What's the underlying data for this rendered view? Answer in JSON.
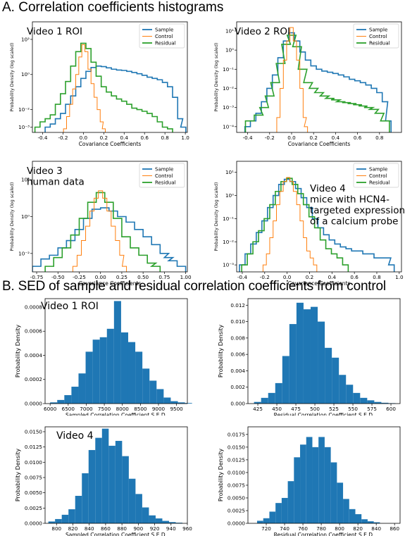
{
  "section_a_title": "A. Correlation coefficients histograms",
  "section_b_title": "B. SED of sample and residual correlation coefficients from  control",
  "colors": {
    "sample": "#1f77b4",
    "control": "#ff7f0e",
    "residual": "#2ca02c",
    "bar": "#1f77b4"
  },
  "chart_data": [
    {
      "type": "line",
      "panel_label": [
        "Video 1 ROI"
      ],
      "xlabel": "Covariance Coefficients",
      "ylabel": "Probability Density (log scaled)",
      "xlim": [
        -0.5,
        1.02
      ],
      "ylim": [
        0.0005,
        1000
      ],
      "yscale": "log",
      "xticks": [
        -0.4,
        -0.2,
        0.0,
        0.2,
        0.4,
        0.6,
        0.8,
        1.0
      ],
      "xtick_labels": [
        "-0.4",
        "-0.2",
        "0.0",
        "0.2",
        "0.4",
        "0.6",
        "0.8",
        "1.0"
      ],
      "yticks": [
        0.001,
        0.01,
        1,
        100
      ],
      "ytick_labels": [
        "10⁻³",
        "10⁻²",
        "10⁰",
        "10²"
      ],
      "legend": "top-right",
      "series": [
        {
          "name": "Sample",
          "color_key": "sample",
          "x": [
            -0.35,
            -0.3,
            -0.25,
            -0.2,
            -0.15,
            -0.1,
            -0.05,
            0.0,
            0.05,
            0.1,
            0.15,
            0.2,
            0.25,
            0.3,
            0.35,
            0.4,
            0.45,
            0.5,
            0.55,
            0.6,
            0.65,
            0.7,
            0.75,
            0.8,
            0.85,
            0.9,
            0.95,
            0.98
          ],
          "y": [
            0.001,
            0.0015,
            0.003,
            0.006,
            0.02,
            0.06,
            0.2,
            0.6,
            1.5,
            2.5,
            3.0,
            2.8,
            2.4,
            2.0,
            1.8,
            1.7,
            1.5,
            1.3,
            1.1,
            0.9,
            0.7,
            0.6,
            0.5,
            0.35,
            0.2,
            0.05,
            0.003,
            0.001
          ]
        },
        {
          "name": "Control",
          "color_key": "control",
          "x": [
            -0.18,
            -0.15,
            -0.12,
            -0.09,
            -0.06,
            -0.03,
            0.0,
            0.03,
            0.06,
            0.09,
            0.12,
            0.15,
            0.18,
            0.2
          ],
          "y": [
            0.0008,
            0.004,
            0.02,
            0.15,
            1.0,
            10,
            50,
            20,
            2,
            0.3,
            0.05,
            0.01,
            0.002,
            0.0008
          ]
        },
        {
          "name": "Residual",
          "color_key": "residual",
          "x": [
            -0.45,
            -0.4,
            -0.35,
            -0.3,
            -0.25,
            -0.2,
            -0.15,
            -0.1,
            -0.05,
            0.0,
            0.05,
            0.1,
            0.15,
            0.2,
            0.25,
            0.3,
            0.35,
            0.4,
            0.45,
            0.5,
            0.55,
            0.6,
            0.65,
            0.7,
            0.75,
            0.8,
            0.85
          ],
          "y": [
            0.001,
            0.002,
            0.003,
            0.005,
            0.02,
            0.08,
            0.4,
            3,
            20,
            60,
            30,
            5,
            0.8,
            0.2,
            0.1,
            0.06,
            0.04,
            0.03,
            0.02,
            0.012,
            0.01,
            0.008,
            0.006,
            0.004,
            0.002,
            0.001,
            0.0008
          ]
        }
      ]
    },
    {
      "type": "line",
      "panel_label": [
        "Video 2 ROI"
      ],
      "xlabel": "Covariance Coefficients",
      "ylabel": "Probability Density (log scaled)",
      "xlim": [
        -0.5,
        1.0
      ],
      "ylim": [
        5e-05,
        30
      ],
      "yscale": "log",
      "xticks": [
        -0.4,
        -0.2,
        0.0,
        0.2,
        0.4,
        0.6,
        0.8
      ],
      "xtick_labels": [
        "-0.4",
        "-0.2",
        "0.0",
        "0.2",
        "0.4",
        "0.6",
        "0.8"
      ],
      "yticks": [
        0.0001,
        0.001,
        0.01,
        0.1,
        1,
        10
      ],
      "ytick_labels": [
        "10⁻⁴",
        "10⁻³",
        "10⁻²",
        "10⁻¹",
        "10⁰",
        "10¹"
      ],
      "legend": "top-right",
      "series": [
        {
          "name": "Sample",
          "color_key": "sample",
          "x": [
            -0.4,
            -0.35,
            -0.3,
            -0.25,
            -0.2,
            -0.15,
            -0.1,
            -0.05,
            0.0,
            0.05,
            0.1,
            0.15,
            0.2,
            0.25,
            0.3,
            0.35,
            0.4,
            0.45,
            0.5,
            0.55,
            0.6,
            0.65,
            0.7,
            0.75,
            0.8,
            0.85,
            0.88
          ],
          "y": [
            0.0001,
            0.0002,
            0.0005,
            0.002,
            0.01,
            0.05,
            0.4,
            3,
            8,
            3,
            0.8,
            0.3,
            0.15,
            0.1,
            0.08,
            0.07,
            0.06,
            0.05,
            0.04,
            0.03,
            0.025,
            0.02,
            0.015,
            0.01,
            0.006,
            0.002,
            0.0002
          ]
        },
        {
          "name": "Control",
          "color_key": "control",
          "x": [
            -0.12,
            -0.09,
            -0.06,
            -0.03,
            0.0,
            0.03,
            0.06,
            0.09,
            0.12,
            0.13
          ],
          "y": [
            0.0003,
            0.01,
            0.3,
            3,
            15,
            3,
            0.3,
            0.01,
            0.0003,
            0.0001
          ]
        },
        {
          "name": "Residual",
          "color_key": "residual",
          "x": [
            -0.38,
            -0.3,
            -0.25,
            -0.2,
            -0.15,
            -0.1,
            -0.05,
            0.0,
            0.05,
            0.1,
            0.15,
            0.2,
            0.25,
            0.3,
            0.35,
            0.4,
            0.45,
            0.5,
            0.55,
            0.6,
            0.65,
            0.7,
            0.75,
            0.8,
            0.85
          ],
          "y": [
            0.0002,
            0.0004,
            0.001,
            0.004,
            0.02,
            0.2,
            2,
            6,
            1.5,
            0.1,
            0.02,
            0.01,
            0.006,
            0.004,
            0.003,
            0.0025,
            0.002,
            0.0018,
            0.0016,
            0.0014,
            0.0012,
            0.001,
            0.0008,
            0.0005,
            0.0002
          ]
        }
      ]
    },
    {
      "type": "line",
      "panel_label": [
        "Video 3",
        "human data"
      ],
      "xlabel": "Covariance Coefficients",
      "ylabel": "Probability Density (log scaled)",
      "xlim": [
        -0.8,
        1.02
      ],
      "ylim": [
        0.001,
        1000
      ],
      "yscale": "log",
      "xticks": [
        -0.75,
        -0.5,
        -0.25,
        0.0,
        0.25,
        0.5,
        0.75,
        1.0
      ],
      "xtick_labels": [
        "-0.75",
        "-0.50",
        "-0.25",
        "0.00",
        "0.25",
        "0.50",
        "0.75",
        "1.00"
      ],
      "yticks": [
        0.01,
        1,
        100
      ],
      "ytick_labels": [
        "10⁻²",
        "10⁰",
        "10²"
      ],
      "legend": "top-right",
      "series": [
        {
          "name": "Sample",
          "color_key": "sample",
          "x": [
            -0.75,
            -0.65,
            -0.55,
            -0.45,
            -0.35,
            -0.25,
            -0.15,
            -0.05,
            0.05,
            0.15,
            0.25,
            0.35,
            0.45,
            0.55,
            0.65,
            0.75,
            0.8,
            0.85,
            0.95
          ],
          "y": [
            0.002,
            0.005,
            0.008,
            0.02,
            0.05,
            0.2,
            0.8,
            2.5,
            3.0,
            2.0,
            1.0,
            0.5,
            0.2,
            0.08,
            0.03,
            0.01,
            0.006,
            0.004,
            0.002
          ]
        },
        {
          "name": "Control",
          "color_key": "control",
          "x": [
            -0.3,
            -0.25,
            -0.2,
            -0.15,
            -0.1,
            -0.05,
            0.0,
            0.05,
            0.1,
            0.15,
            0.2,
            0.25,
            0.28
          ],
          "y": [
            0.002,
            0.008,
            0.05,
            0.3,
            2,
            10,
            25,
            10,
            2,
            0.3,
            0.05,
            0.008,
            0.002
          ]
        },
        {
          "name": "Residual",
          "color_key": "residual",
          "x": [
            -0.6,
            -0.5,
            -0.4,
            -0.3,
            -0.2,
            -0.1,
            0.0,
            0.1,
            0.2,
            0.3,
            0.4,
            0.5,
            0.6,
            0.65
          ],
          "y": [
            0.002,
            0.006,
            0.02,
            0.1,
            0.8,
            6,
            20,
            6,
            0.8,
            0.08,
            0.02,
            0.008,
            0.003,
            0.002
          ]
        }
      ]
    },
    {
      "type": "line",
      "panel_label": [
        "Video 4",
        "mice with HCN4-",
        "targeted expression",
        "of a calcium probe"
      ],
      "xlabel": "Covariance Coefficients",
      "ylabel": "Probability Density (log scaled)",
      "xlim": [
        -0.45,
        1.02
      ],
      "ylim": [
        0.0005,
        30
      ],
      "yscale": "log",
      "xticks": [
        -0.4,
        -0.2,
        0.0,
        0.2,
        0.4,
        0.6,
        0.8,
        1.0
      ],
      "xtick_labels": [
        "-0.4",
        "-0.2",
        "0.0",
        "0.2",
        "0.4",
        "0.6",
        "0.8",
        "1.0"
      ],
      "yticks": [
        0.001,
        0.01,
        0.1,
        1,
        10
      ],
      "ytick_labels": [
        "10⁻³",
        "10⁻²",
        "10⁻¹",
        "10⁰",
        "10¹"
      ],
      "legend": "top-right",
      "series": [
        {
          "name": "Sample",
          "color_key": "sample",
          "x": [
            -0.4,
            -0.35,
            -0.3,
            -0.25,
            -0.2,
            -0.15,
            -0.1,
            -0.05,
            0.0,
            0.05,
            0.1,
            0.15,
            0.2,
            0.25,
            0.3,
            0.35,
            0.4,
            0.45,
            0.5,
            0.55,
            0.6,
            0.65,
            0.7,
            0.75,
            0.8,
            0.85,
            0.9,
            0.93
          ],
          "y": [
            0.001,
            0.003,
            0.008,
            0.025,
            0.08,
            0.3,
            1.0,
            3,
            5,
            4,
            2,
            0.8,
            0.3,
            0.1,
            0.04,
            0.02,
            0.012,
            0.008,
            0.006,
            0.005,
            0.004,
            0.004,
            0.003,
            0.003,
            0.002,
            0.002,
            0.002,
            0.001
          ]
        },
        {
          "name": "Control",
          "color_key": "control",
          "x": [
            -0.2,
            -0.17,
            -0.14,
            -0.11,
            -0.08,
            -0.05,
            -0.02,
            0.01,
            0.04,
            0.07,
            0.1,
            0.13,
            0.16,
            0.19,
            0.22,
            0.25
          ],
          "y": [
            0.001,
            0.003,
            0.015,
            0.08,
            0.4,
            1.5,
            4,
            6,
            4,
            1.5,
            0.4,
            0.08,
            0.015,
            0.004,
            0.002,
            0.001
          ]
        },
        {
          "name": "Residual",
          "color_key": "residual",
          "x": [
            -0.38,
            -0.33,
            -0.28,
            -0.23,
            -0.18,
            -0.13,
            -0.08,
            -0.03,
            0.02,
            0.07,
            0.12,
            0.17,
            0.22,
            0.27,
            0.32,
            0.37,
            0.42,
            0.47,
            0.52
          ],
          "y": [
            0.001,
            0.003,
            0.01,
            0.03,
            0.1,
            0.4,
            1.5,
            4,
            5.5,
            3,
            1.2,
            0.4,
            0.12,
            0.04,
            0.012,
            0.005,
            0.003,
            0.002,
            0.001
          ]
        }
      ]
    },
    {
      "type": "bar",
      "panel_label": [
        "Video 1 ROI"
      ],
      "xlabel": "Sampled Correlation Coefficient S.E.D.",
      "ylabel": "Probability Density",
      "xlim": [
        5860,
        9800
      ],
      "ylim": [
        0,
        0.00087
      ],
      "xticks": [
        6000,
        6500,
        7000,
        7500,
        8000,
        8500,
        9000,
        9500
      ],
      "xtick_labels": [
        "6000",
        "6500",
        "7000",
        "7500",
        "8000",
        "8500",
        "9000",
        "9500"
      ],
      "yticks": [
        0,
        0.0002,
        0.0004,
        0.0006,
        0.0008
      ],
      "ytick_labels": [
        "0.0000",
        "0.0002",
        "0.0004",
        "0.0006",
        "0.0008"
      ],
      "bin_start": 6000,
      "bin_width": 196.5,
      "values": [
        1e-05,
        3e-05,
        7e-05,
        0.00014,
        0.00025,
        0.00043,
        0.00053,
        0.00055,
        0.00062,
        0.00085,
        0.00059,
        0.00051,
        0.00043,
        0.00029,
        0.00019,
        0.00012,
        5e-05,
        2e-05,
        1e-05,
        5e-06
      ]
    },
    {
      "type": "bar",
      "panel_label": [],
      "xlabel": "Residual Correlation Coefficient S.E.D.",
      "ylabel": "Probability Density",
      "xlim": [
        412,
        612
      ],
      "ylim": [
        0,
        0.0128
      ],
      "xticks": [
        425,
        450,
        475,
        500,
        525,
        550,
        575,
        600
      ],
      "xtick_labels": [
        "425",
        "450",
        "475",
        "500",
        "525",
        "550",
        "575",
        "600"
      ],
      "yticks": [
        0,
        0.002,
        0.004,
        0.006,
        0.008,
        0.01,
        0.012
      ],
      "ytick_labels": [
        "0.000",
        "0.002",
        "0.004",
        "0.006",
        "0.008",
        "0.010",
        "0.012"
      ],
      "bin_start": 420,
      "bin_width": 9.3,
      "values": [
        0.0002,
        0.0007,
        0.0013,
        0.0025,
        0.0058,
        0.0097,
        0.0123,
        0.0115,
        0.0118,
        0.01,
        0.0068,
        0.0056,
        0.0035,
        0.0023,
        0.0013,
        0.0007,
        0.0004,
        0.0002,
        0.0001,
        5e-05
      ]
    },
    {
      "type": "bar",
      "panel_label": [
        "Video 4"
      ],
      "xlabel": "Sampled Correlation Coefficient S.E.D.",
      "ylabel": "Probability Density",
      "xlim": [
        786,
        960
      ],
      "ylim": [
        0,
        0.0158
      ],
      "xticks": [
        800,
        820,
        840,
        860,
        880,
        900,
        920,
        940,
        960
      ],
      "xtick_labels": [
        "800",
        "820",
        "840",
        "860",
        "880",
        "900",
        "920",
        "940",
        "960"
      ],
      "yticks": [
        0,
        0.0025,
        0.005,
        0.0075,
        0.01,
        0.0125,
        0.015
      ],
      "ytick_labels": [
        "0.0000",
        "0.0025",
        "0.0050",
        "0.0075",
        "0.0100",
        "0.0125",
        "0.0150"
      ],
      "bin_start": 790,
      "bin_width": 8.2,
      "values": [
        0.0003,
        0.0007,
        0.0014,
        0.0023,
        0.0045,
        0.0082,
        0.012,
        0.014,
        0.0155,
        0.0127,
        0.0135,
        0.011,
        0.0073,
        0.0048,
        0.0026,
        0.0013,
        0.0008,
        0.0004,
        0.0002,
        0.0001
      ]
    },
    {
      "type": "bar",
      "panel_label": [],
      "xlabel": "Residual Correlation Coefficient S.E.D.",
      "ylabel": "Probability Density",
      "xlim": [
        700,
        866
      ],
      "ylim": [
        0,
        0.019
      ],
      "xticks": [
        720,
        740,
        760,
        780,
        800,
        820,
        840,
        860
      ],
      "xtick_labels": [
        "720",
        "740",
        "760",
        "780",
        "800",
        "820",
        "840",
        "860"
      ],
      "yticks": [
        0,
        0.0025,
        0.005,
        0.0075,
        0.01,
        0.0125,
        0.015,
        0.0175
      ],
      "ytick_labels": [
        "0.0000",
        "0.0025",
        "0.0050",
        "0.0075",
        "0.0100",
        "0.0125",
        "0.0150",
        "0.0175"
      ],
      "bin_start": 710,
      "bin_width": 6.7,
      "values": [
        0.0005,
        0.001,
        0.0023,
        0.004,
        0.005,
        0.0083,
        0.013,
        0.0155,
        0.017,
        0.015,
        0.017,
        0.015,
        0.012,
        0.008,
        0.0048,
        0.0028,
        0.0018,
        0.0008,
        0.0004,
        0.0002
      ]
    }
  ]
}
